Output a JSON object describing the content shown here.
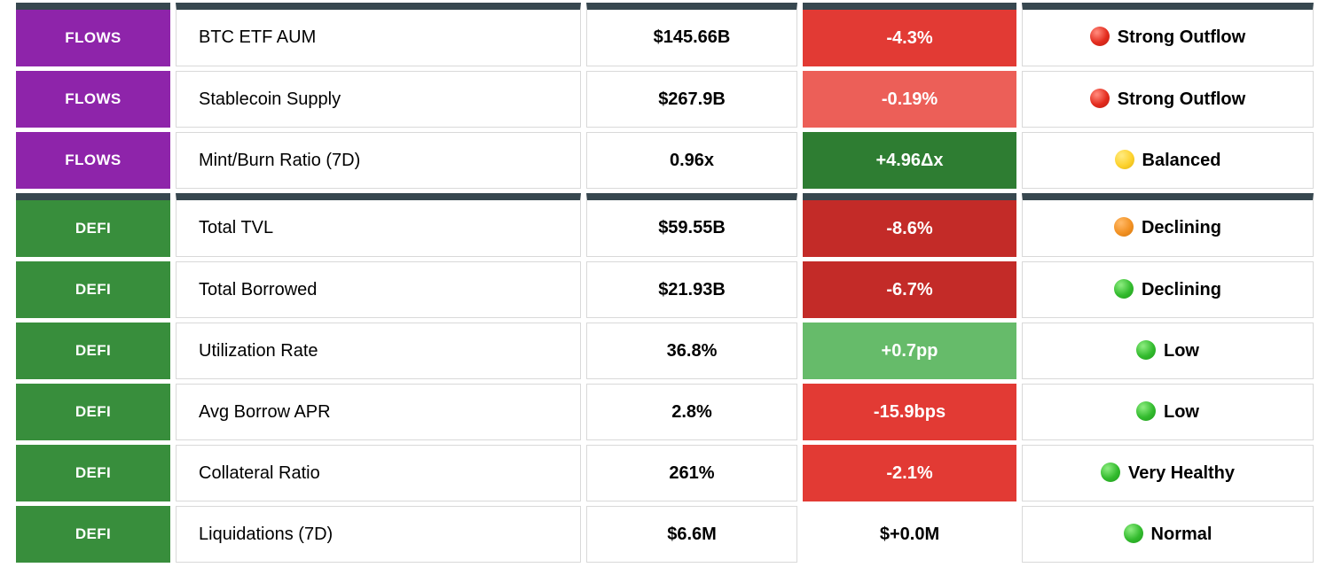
{
  "colors": {
    "section_bar": "#37474f",
    "cell_border": "#d9d9d9",
    "flows_badge": "#8e24aa",
    "defi_badge": "#388e3c",
    "red_strong": "#e23a34",
    "red_light": "#ec5f58",
    "red_dark": "#c32b28",
    "green_dark": "#2e7d32",
    "green_light": "#66bb6a",
    "neutral_bg": "#ffffff"
  },
  "dot_colors": {
    "red": [
      "#ff8577",
      "#e32c1e",
      "#b91d10"
    ],
    "yellow": [
      "#ffe97a",
      "#fdd22e",
      "#e0b20e"
    ],
    "orange": [
      "#ffb763",
      "#f29123",
      "#d2770e"
    ],
    "green": [
      "#86e97a",
      "#33bb2e",
      "#1d9a1a"
    ]
  },
  "table": {
    "sections": [
      {
        "label": "FLOWS",
        "badge_color": "#8e24aa",
        "rows": [
          {
            "metric": "BTC ETF AUM",
            "value": "$145.66B",
            "change": "-4.3%",
            "change_bg": "#e23a34",
            "change_color": "#ffffff",
            "dot": "red",
            "status": "Strong Outflow"
          },
          {
            "metric": "Stablecoin Supply",
            "value": "$267.9B",
            "change": "-0.19%",
            "change_bg": "#ec5f58",
            "change_color": "#ffffff",
            "dot": "red",
            "status": "Strong Outflow"
          },
          {
            "metric": "Mint/Burn Ratio (7D)",
            "value": "0.96x",
            "change": "+4.96Δx",
            "change_bg": "#2e7d32",
            "change_color": "#ffffff",
            "dot": "yellow",
            "status": "Balanced"
          }
        ]
      },
      {
        "label": "DEFI",
        "badge_color": "#388e3c",
        "rows": [
          {
            "metric": "Total TVL",
            "value": "$59.55B",
            "change": "-8.6%",
            "change_bg": "#c32b28",
            "change_color": "#ffffff",
            "dot": "orange",
            "status": "Declining"
          },
          {
            "metric": "Total Borrowed",
            "value": "$21.93B",
            "change": "-6.7%",
            "change_bg": "#c32b28",
            "change_color": "#ffffff",
            "dot": "green",
            "status": "Declining"
          },
          {
            "metric": "Utilization Rate",
            "value": "36.8%",
            "change": "+0.7pp",
            "change_bg": "#66bb6a",
            "change_color": "#ffffff",
            "dot": "green",
            "status": "Low"
          },
          {
            "metric": "Avg Borrow APR",
            "value": "2.8%",
            "change": "-15.9bps",
            "change_bg": "#e23a34",
            "change_color": "#ffffff",
            "dot": "green",
            "status": "Low"
          },
          {
            "metric": "Collateral Ratio",
            "value": "261%",
            "change": "-2.1%",
            "change_bg": "#e23a34",
            "change_color": "#ffffff",
            "dot": "green",
            "status": "Very Healthy"
          },
          {
            "metric": "Liquidations (7D)",
            "value": "$6.6M",
            "change": "$+0.0M",
            "change_bg": "#ffffff",
            "change_color": "#000000",
            "dot": "green",
            "status": "Normal"
          }
        ]
      }
    ]
  }
}
